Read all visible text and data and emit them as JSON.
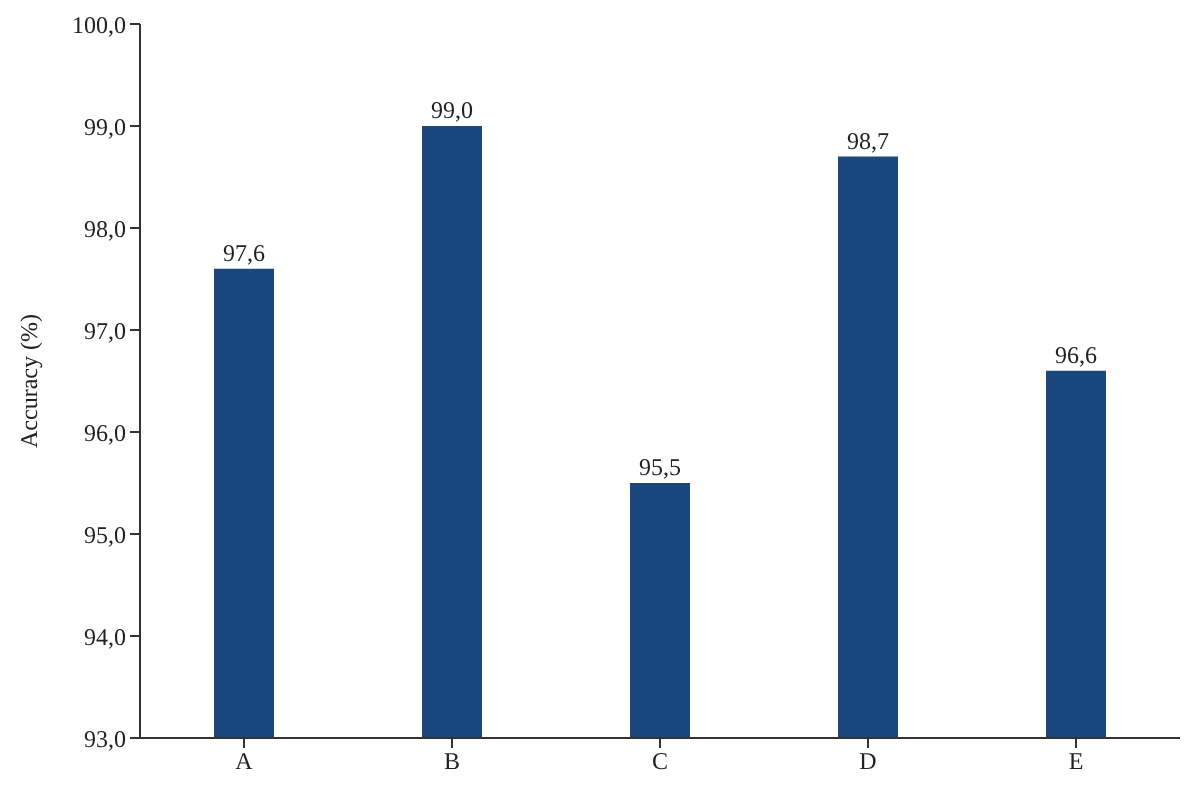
{
  "chart_data": {
    "type": "bar",
    "ylabel": "Accuracy (%)",
    "categories": [
      "A",
      "B",
      "C",
      "D",
      "E"
    ],
    "values": [
      97.6,
      99.0,
      95.5,
      98.7,
      96.6
    ],
    "value_labels": [
      "97,6",
      "99,0",
      "95,5",
      "98,7",
      "96,6"
    ],
    "color": "#1b477f",
    "ylim": [
      93,
      100
    ],
    "yticks": [
      {
        "value": 93,
        "label": "93,0"
      },
      {
        "value": 94,
        "label": "94,0"
      },
      {
        "value": 95,
        "label": "95,0"
      },
      {
        "value": 96,
        "label": "96,0"
      },
      {
        "value": 97,
        "label": "97,0"
      },
      {
        "value": 98,
        "label": "98,0"
      },
      {
        "value": 99,
        "label": "99,0"
      },
      {
        "value": 100,
        "label": "100,0"
      }
    ],
    "grid": false
  }
}
